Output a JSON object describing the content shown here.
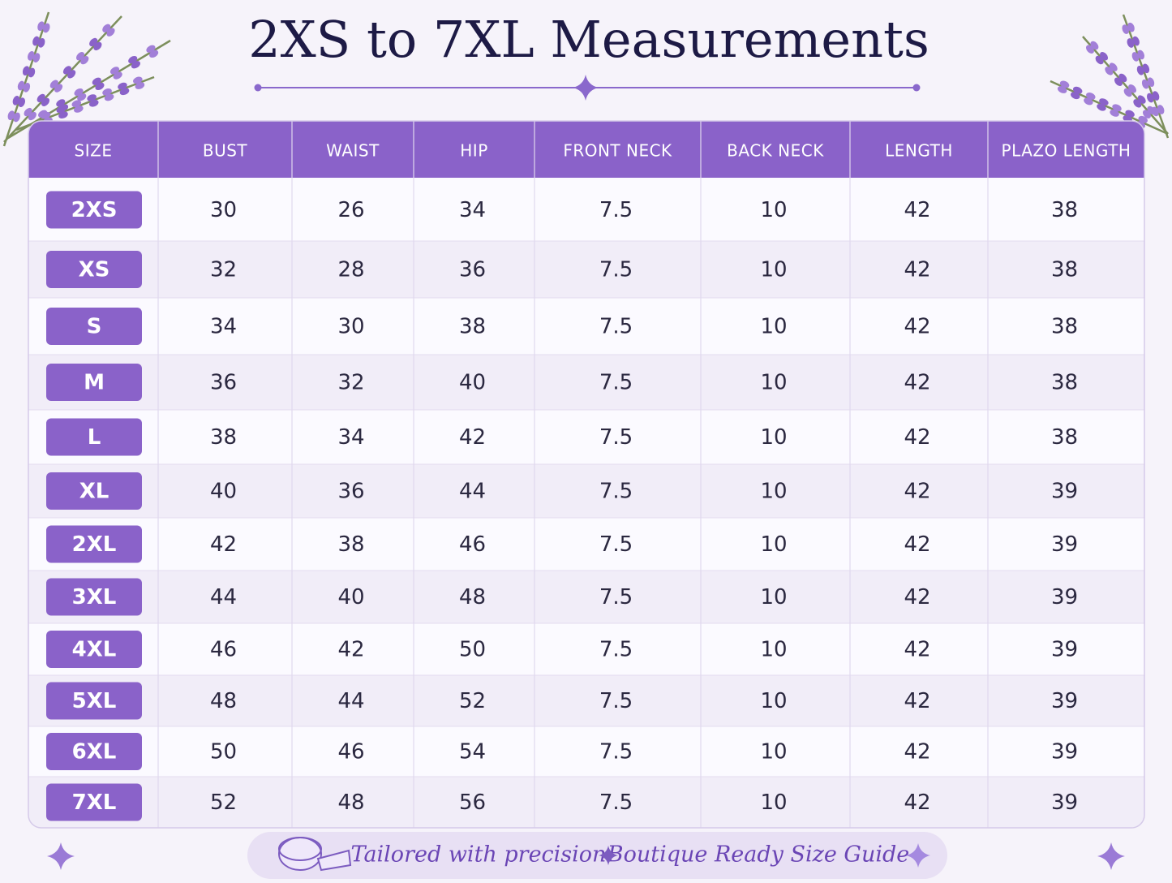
{
  "title": "2XS to 7XL Measurements",
  "table": {
    "headers": [
      "SIZE",
      "BUST",
      "WAIST",
      "HIP",
      "FRONT NECK",
      "BACK NECK",
      "LENGTH",
      "PLAZO LENGTH"
    ],
    "rows": [
      [
        "2XS",
        30,
        26,
        34,
        7.5,
        10,
        42,
        38
      ],
      [
        "XS",
        32,
        28,
        36,
        7.5,
        10,
        42,
        38
      ],
      [
        "S",
        34,
        30,
        38,
        7.5,
        10,
        42,
        38
      ],
      [
        "M",
        36,
        32,
        40,
        7.5,
        10,
        42,
        38
      ],
      [
        "L",
        38,
        34,
        42,
        7.5,
        10,
        42,
        38
      ],
      [
        "XL",
        40,
        36,
        44,
        7.5,
        10,
        42,
        39
      ],
      [
        "2XL",
        42,
        38,
        46,
        7.5,
        10,
        42,
        39
      ],
      [
        "3XL",
        44,
        40,
        48,
        7.5,
        10,
        42,
        39
      ],
      [
        "4XL",
        46,
        42,
        50,
        7.5,
        10,
        42,
        39
      ],
      [
        "5XL",
        48,
        44,
        52,
        7.5,
        10,
        42,
        39
      ],
      [
        "6XL",
        50,
        46,
        54,
        7.5,
        10,
        42,
        39
      ],
      [
        "7XL",
        52,
        48,
        56,
        7.5,
        10,
        42,
        39
      ]
    ]
  },
  "footer": {
    "tagline": "Tailored with precision",
    "subtitle": "Boutique Ready Size Guide"
  }
}
